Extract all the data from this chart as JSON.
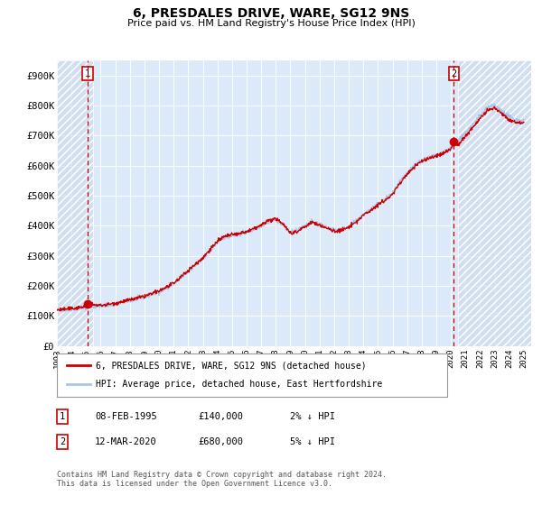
{
  "title": "6, PRESDALES DRIVE, WARE, SG12 9NS",
  "subtitle": "Price paid vs. HM Land Registry's House Price Index (HPI)",
  "xlim": [
    1993.0,
    2025.5
  ],
  "ylim": [
    0,
    950000
  ],
  "yticks": [
    0,
    100000,
    200000,
    300000,
    400000,
    500000,
    600000,
    700000,
    800000,
    900000
  ],
  "ytick_labels": [
    "£0",
    "£100K",
    "£200K",
    "£300K",
    "£400K",
    "£500K",
    "£600K",
    "£700K",
    "£800K",
    "£900K"
  ],
  "xticks": [
    1993,
    1994,
    1995,
    1996,
    1997,
    1998,
    1999,
    2000,
    2001,
    2002,
    2003,
    2004,
    2005,
    2006,
    2007,
    2008,
    2009,
    2010,
    2011,
    2012,
    2013,
    2014,
    2015,
    2016,
    2017,
    2018,
    2019,
    2020,
    2021,
    2022,
    2023,
    2024,
    2025
  ],
  "bg_color": "#dce9f8",
  "hpi_color": "#aac4e8",
  "price_color": "#cc0000",
  "marker1_date": 1995.1,
  "marker1_value": 140000,
  "marker2_date": 2020.2,
  "marker2_value": 680000,
  "vline1_x": 1995.1,
  "vline2_x": 2020.2,
  "legend_label1": "6, PRESDALES DRIVE, WARE, SG12 9NS (detached house)",
  "legend_label2": "HPI: Average price, detached house, East Hertfordshire",
  "ann1_label": "1",
  "ann2_label": "2",
  "footer": "Contains HM Land Registry data © Crown copyright and database right 2024.\nThis data is licensed under the Open Government Licence v3.0.",
  "hatch_left_end": 1995.5,
  "hatch_right_start": 2020.5
}
